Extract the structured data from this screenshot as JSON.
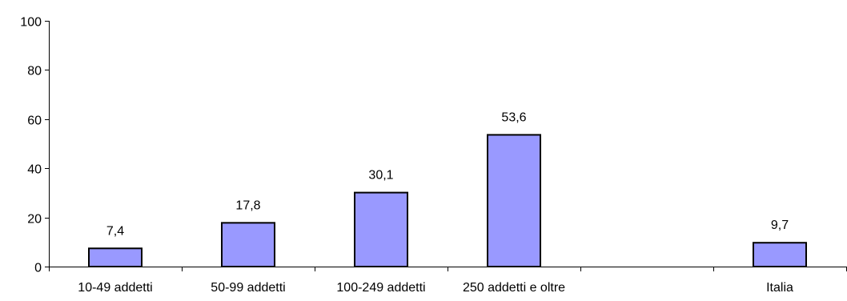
{
  "chart_data": {
    "type": "bar",
    "categories": [
      "10-49 addetti",
      "50-99 addetti",
      "100-249 addetti",
      "250 addetti e oltre",
      "",
      "Italia"
    ],
    "values": [
      7.4,
      17.8,
      30.1,
      53.6,
      null,
      9.7
    ],
    "data_labels": [
      "7,4",
      "17,8",
      "30,1",
      "53,6",
      "",
      "9,7"
    ],
    "yticks": [
      0,
      20,
      40,
      60,
      80,
      100
    ],
    "ytick_labels": [
      "0",
      "20",
      "40",
      "60",
      "80",
      "100"
    ],
    "ylim": [
      0,
      100
    ],
    "title": "",
    "xlabel": "",
    "ylabel": "",
    "grid": false,
    "legend": "none",
    "bar_color": "#9999ff",
    "bar_border_color": "#000000"
  }
}
